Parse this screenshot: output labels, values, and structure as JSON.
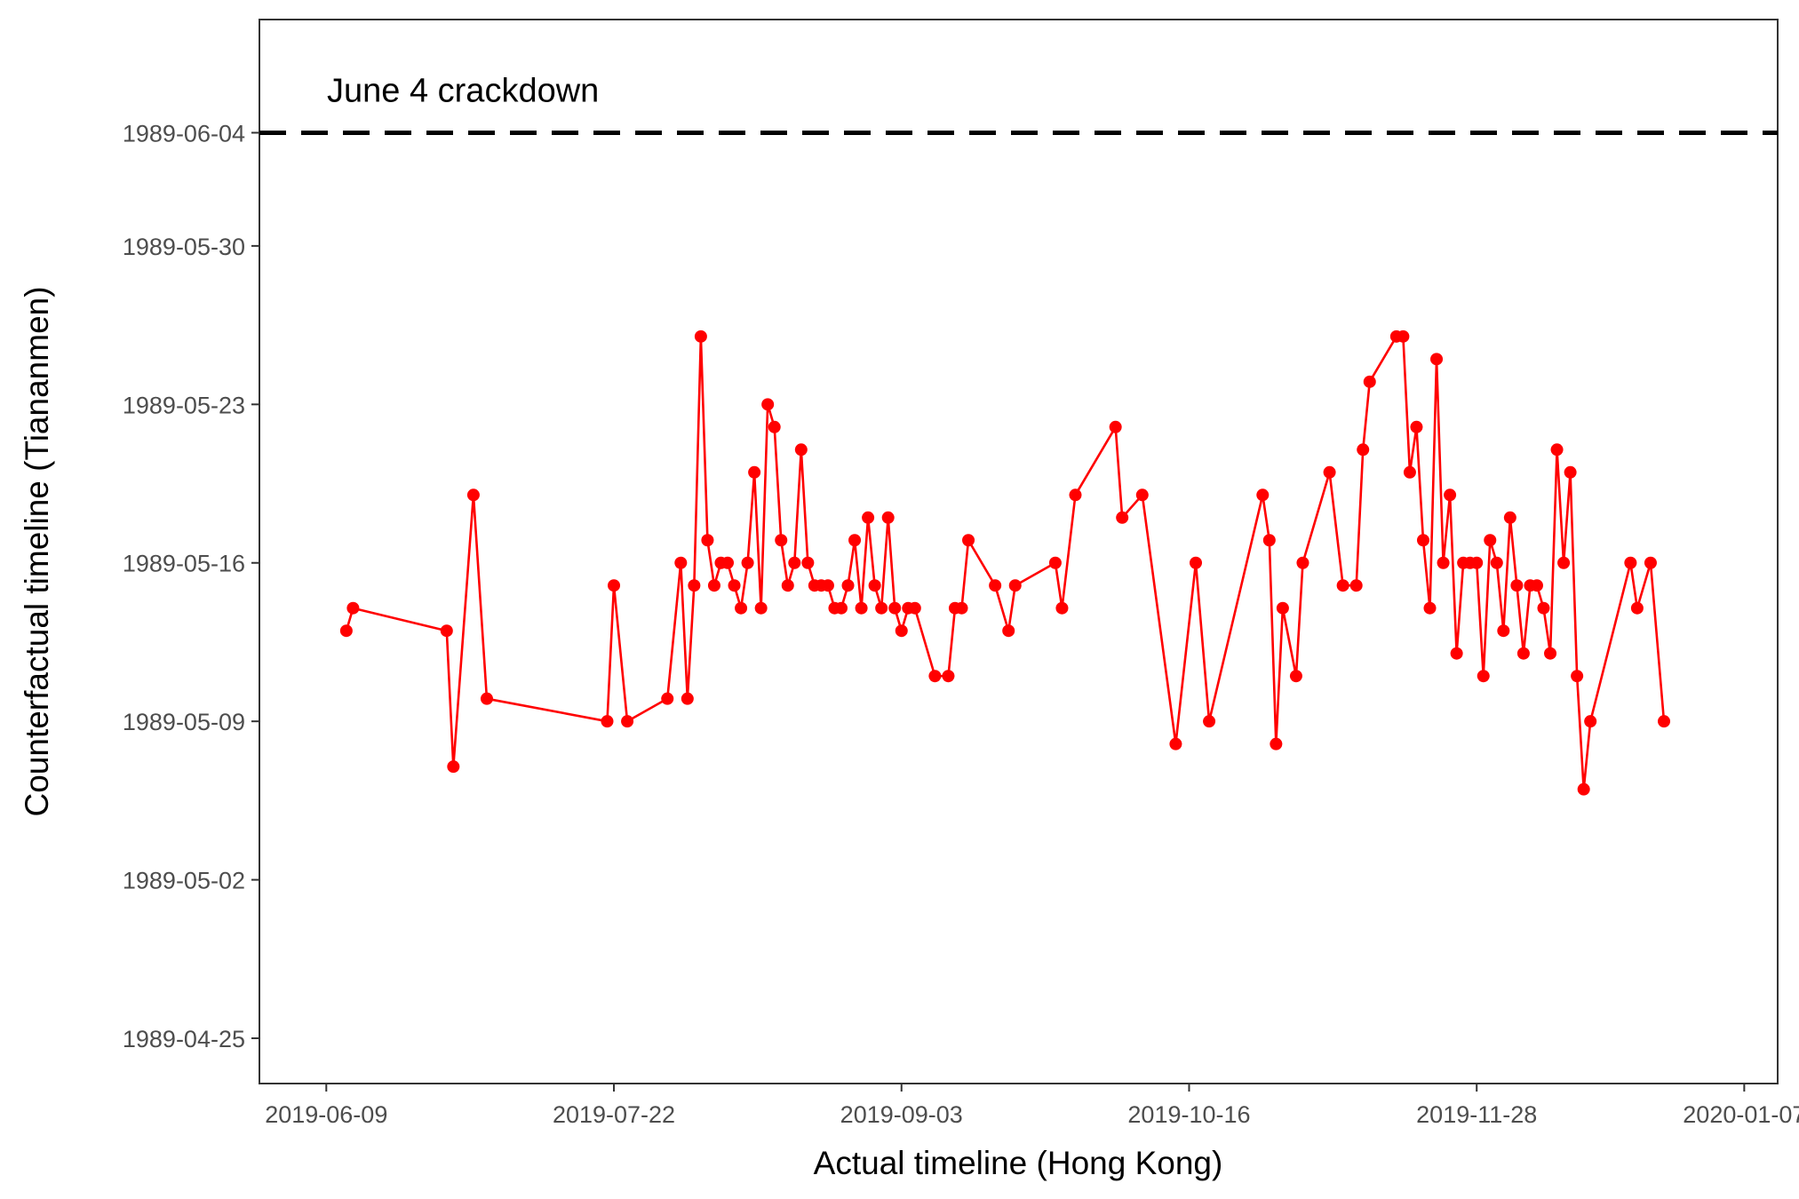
{
  "chart_data": {
    "type": "line",
    "xlabel": "Actual timeline (Hong Kong)",
    "ylabel": "Counterfactual timeline (Tiananmen)",
    "x_ticks": [
      "2019-06-09",
      "2019-07-22",
      "2019-09-03",
      "2019-10-16",
      "2019-11-28",
      "2020-01-07"
    ],
    "y_ticks": [
      "1989-04-25",
      "1989-05-02",
      "1989-05-09",
      "1989-05-16",
      "1989-05-23",
      "1989-05-30",
      "1989-06-04"
    ],
    "xlim": [
      "2019-05-30",
      "2020-01-12"
    ],
    "ylim": [
      "1989-04-23",
      "1989-06-09"
    ],
    "grid": false,
    "reference_line": {
      "y": "1989-06-04",
      "style": "dashed",
      "color": "#000000",
      "label": "June 4 crackdown"
    },
    "series": [
      {
        "color": "#ff0000",
        "points": [
          [
            "2019-06-12",
            "1989-05-13"
          ],
          [
            "2019-06-13",
            "1989-05-14"
          ],
          [
            "2019-06-27",
            "1989-05-13"
          ],
          [
            "2019-06-28",
            "1989-05-07"
          ],
          [
            "2019-07-01",
            "1989-05-19"
          ],
          [
            "2019-07-03",
            "1989-05-10"
          ],
          [
            "2019-07-21",
            "1989-05-09"
          ],
          [
            "2019-07-22",
            "1989-05-15"
          ],
          [
            "2019-07-24",
            "1989-05-09"
          ],
          [
            "2019-07-30",
            "1989-05-10"
          ],
          [
            "2019-08-01",
            "1989-05-16"
          ],
          [
            "2019-08-02",
            "1989-05-10"
          ],
          [
            "2019-08-03",
            "1989-05-15"
          ],
          [
            "2019-08-04",
            "1989-05-26"
          ],
          [
            "2019-08-05",
            "1989-05-17"
          ],
          [
            "2019-08-06",
            "1989-05-15"
          ],
          [
            "2019-08-07",
            "1989-05-16"
          ],
          [
            "2019-08-08",
            "1989-05-16"
          ],
          [
            "2019-08-09",
            "1989-05-15"
          ],
          [
            "2019-08-10",
            "1989-05-14"
          ],
          [
            "2019-08-11",
            "1989-05-16"
          ],
          [
            "2019-08-12",
            "1989-05-20"
          ],
          [
            "2019-08-13",
            "1989-05-14"
          ],
          [
            "2019-08-14",
            "1989-05-23"
          ],
          [
            "2019-08-15",
            "1989-05-22"
          ],
          [
            "2019-08-16",
            "1989-05-17"
          ],
          [
            "2019-08-17",
            "1989-05-15"
          ],
          [
            "2019-08-18",
            "1989-05-16"
          ],
          [
            "2019-08-19",
            "1989-05-21"
          ],
          [
            "2019-08-20",
            "1989-05-16"
          ],
          [
            "2019-08-21",
            "1989-05-15"
          ],
          [
            "2019-08-22",
            "1989-05-15"
          ],
          [
            "2019-08-23",
            "1989-05-15"
          ],
          [
            "2019-08-24",
            "1989-05-14"
          ],
          [
            "2019-08-25",
            "1989-05-14"
          ],
          [
            "2019-08-26",
            "1989-05-15"
          ],
          [
            "2019-08-27",
            "1989-05-17"
          ],
          [
            "2019-08-28",
            "1989-05-14"
          ],
          [
            "2019-08-29",
            "1989-05-18"
          ],
          [
            "2019-08-30",
            "1989-05-15"
          ],
          [
            "2019-08-31",
            "1989-05-14"
          ],
          [
            "2019-09-01",
            "1989-05-18"
          ],
          [
            "2019-09-02",
            "1989-05-14"
          ],
          [
            "2019-09-03",
            "1989-05-13"
          ],
          [
            "2019-09-04",
            "1989-05-14"
          ],
          [
            "2019-09-05",
            "1989-05-14"
          ],
          [
            "2019-09-08",
            "1989-05-11"
          ],
          [
            "2019-09-10",
            "1989-05-11"
          ],
          [
            "2019-09-11",
            "1989-05-14"
          ],
          [
            "2019-09-12",
            "1989-05-14"
          ],
          [
            "2019-09-13",
            "1989-05-17"
          ],
          [
            "2019-09-17",
            "1989-05-15"
          ],
          [
            "2019-09-19",
            "1989-05-13"
          ],
          [
            "2019-09-20",
            "1989-05-15"
          ],
          [
            "2019-09-26",
            "1989-05-16"
          ],
          [
            "2019-09-27",
            "1989-05-14"
          ],
          [
            "2019-09-29",
            "1989-05-19"
          ],
          [
            "2019-10-05",
            "1989-05-22"
          ],
          [
            "2019-10-06",
            "1989-05-18"
          ],
          [
            "2019-10-09",
            "1989-05-19"
          ],
          [
            "2019-10-14",
            "1989-05-08"
          ],
          [
            "2019-10-17",
            "1989-05-16"
          ],
          [
            "2019-10-19",
            "1989-05-09"
          ],
          [
            "2019-10-27",
            "1989-05-19"
          ],
          [
            "2019-10-28",
            "1989-05-17"
          ],
          [
            "2019-10-29",
            "1989-05-08"
          ],
          [
            "2019-10-30",
            "1989-05-14"
          ],
          [
            "2019-11-01",
            "1989-05-11"
          ],
          [
            "2019-11-02",
            "1989-05-16"
          ],
          [
            "2019-11-06",
            "1989-05-20"
          ],
          [
            "2019-11-08",
            "1989-05-15"
          ],
          [
            "2019-11-10",
            "1989-05-15"
          ],
          [
            "2019-11-11",
            "1989-05-21"
          ],
          [
            "2019-11-12",
            "1989-05-24"
          ],
          [
            "2019-11-16",
            "1989-05-26"
          ],
          [
            "2019-11-17",
            "1989-05-26"
          ],
          [
            "2019-11-18",
            "1989-05-20"
          ],
          [
            "2019-11-19",
            "1989-05-22"
          ],
          [
            "2019-11-20",
            "1989-05-17"
          ],
          [
            "2019-11-21",
            "1989-05-14"
          ],
          [
            "2019-11-22",
            "1989-05-25"
          ],
          [
            "2019-11-23",
            "1989-05-16"
          ],
          [
            "2019-11-24",
            "1989-05-19"
          ],
          [
            "2019-11-25",
            "1989-05-12"
          ],
          [
            "2019-11-26",
            "1989-05-16"
          ],
          [
            "2019-11-27",
            "1989-05-16"
          ],
          [
            "2019-11-28",
            "1989-05-16"
          ],
          [
            "2019-11-29",
            "1989-05-11"
          ],
          [
            "2019-11-30",
            "1989-05-17"
          ],
          [
            "2019-12-01",
            "1989-05-16"
          ],
          [
            "2019-12-02",
            "1989-05-13"
          ],
          [
            "2019-12-03",
            "1989-05-18"
          ],
          [
            "2019-12-04",
            "1989-05-15"
          ],
          [
            "2019-12-05",
            "1989-05-12"
          ],
          [
            "2019-12-06",
            "1989-05-15"
          ],
          [
            "2019-12-07",
            "1989-05-15"
          ],
          [
            "2019-12-08",
            "1989-05-14"
          ],
          [
            "2019-12-09",
            "1989-05-12"
          ],
          [
            "2019-12-10",
            "1989-05-21"
          ],
          [
            "2019-12-11",
            "1989-05-16"
          ],
          [
            "2019-12-12",
            "1989-05-20"
          ],
          [
            "2019-12-13",
            "1989-05-11"
          ],
          [
            "2019-12-14",
            "1989-05-06"
          ],
          [
            "2019-12-15",
            "1989-05-09"
          ],
          [
            "2019-12-21",
            "1989-05-16"
          ],
          [
            "2019-12-22",
            "1989-05-14"
          ],
          [
            "2019-12-24",
            "1989-05-16"
          ],
          [
            "2019-12-26",
            "1989-05-09"
          ]
        ]
      }
    ]
  }
}
